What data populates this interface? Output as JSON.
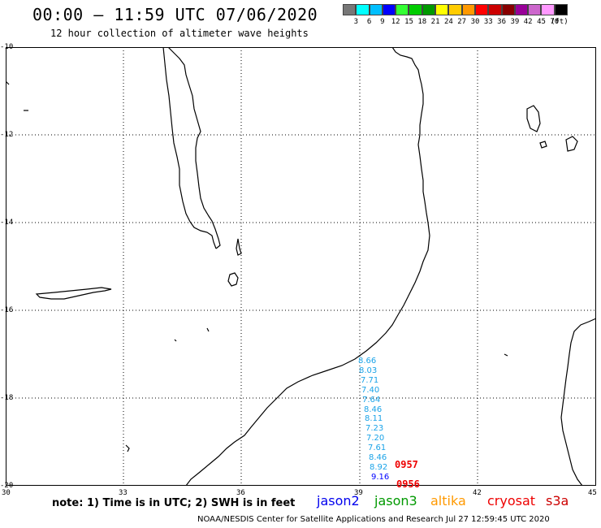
{
  "header": {
    "title": "00:00 – 11:59 UTC 07/06/2020",
    "subtitle": "12 hour collection of altimeter wave heights"
  },
  "color_scale": {
    "colors": [
      "#777777",
      "#00ffff",
      "#00bfff",
      "#0000ff",
      "#33ff33",
      "#00cc00",
      "#009900",
      "#ffff00",
      "#ffcc00",
      "#ff9900",
      "#ff0000",
      "#cc0000",
      "#880000",
      "#990099",
      "#cc66cc",
      "#ff99ff",
      "#000000"
    ],
    "labels": [
      "3",
      "6",
      "9",
      "12",
      "15",
      "18",
      "21",
      "24",
      "27",
      "30",
      "33",
      "36",
      "39",
      "42",
      "45",
      "70",
      "(ft)"
    ]
  },
  "axes": {
    "y_labels": [
      "-10",
      "-12",
      "-14",
      "-16",
      "-18",
      "-20"
    ],
    "x_labels": [
      "30",
      "33",
      "36",
      "39",
      "42",
      "45"
    ]
  },
  "observations": {
    "swh_values": [
      {
        "value": "8.66",
        "color": "#1aa3e8"
      },
      {
        "value": "8.03",
        "color": "#1aa3e8"
      },
      {
        "value": "7.71",
        "color": "#1aa3e8"
      },
      {
        "value": "7.40",
        "color": "#1aa3e8"
      },
      {
        "value": "7.64",
        "color": "#1aa3e8"
      },
      {
        "value": "8.46",
        "color": "#1aa3e8"
      },
      {
        "value": "8.11",
        "color": "#1aa3e8"
      },
      {
        "value": "7.23",
        "color": "#1aa3e8"
      },
      {
        "value": "7.20",
        "color": "#1aa3e8"
      },
      {
        "value": "7.61",
        "color": "#1aa3e8"
      },
      {
        "value": "8.46",
        "color": "#1aa3e8"
      },
      {
        "value": "8.92",
        "color": "#1aa3e8"
      },
      {
        "value": "9.16",
        "color": "#0000ff"
      }
    ],
    "pass_times": [
      {
        "value": "0957",
        "color": "#ee0000"
      },
      {
        "value": "0956",
        "color": "#ee0000"
      }
    ]
  },
  "footer": {
    "note": "note:  1) Time is in UTC;  2) SWH is in feet",
    "satellites": [
      {
        "name": "jason2",
        "color": "#0000ee"
      },
      {
        "name": "jason3",
        "color": "#009900"
      },
      {
        "name": "altika",
        "color": "#ff9900"
      },
      {
        "name": "cryosat",
        "color": "#ee0000"
      },
      {
        "name": "s3a",
        "color": "#cc0000"
      }
    ],
    "credit": "NOAA/NESDIS Center for Satellite Applications and Research    Jul 27 12:59:45 UTC 2020"
  }
}
